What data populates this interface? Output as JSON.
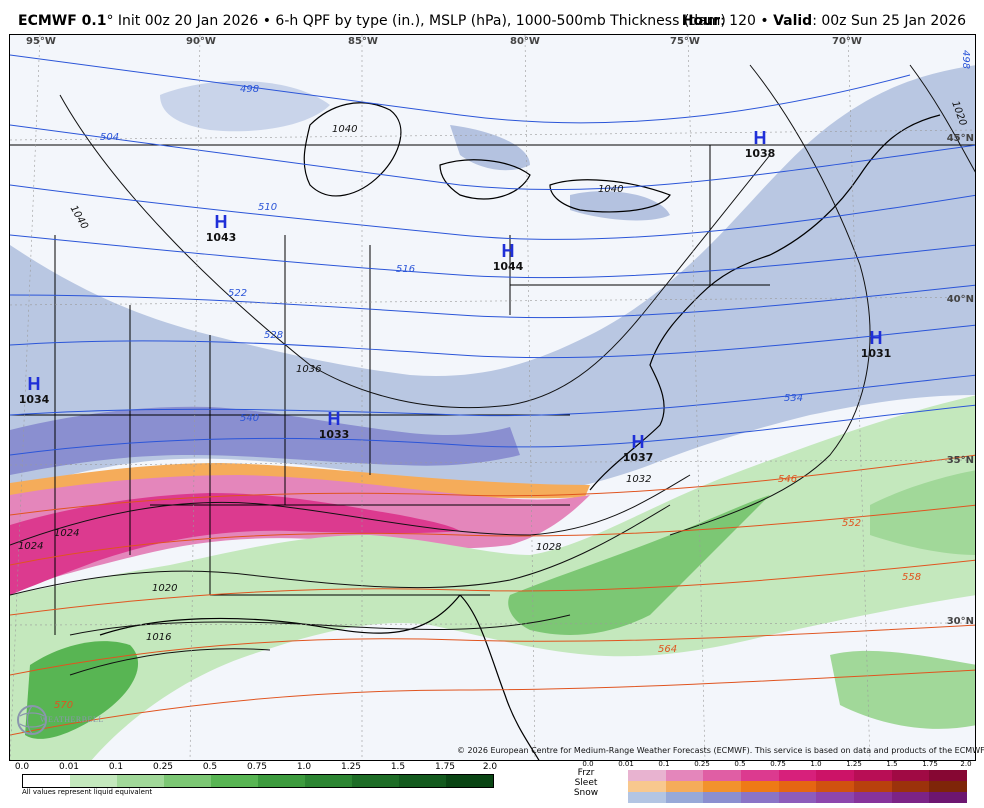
{
  "header": {
    "model": "ECMWF 0.1",
    "description": "° Init 00z 20 Jan 2026 • 6-h QPF by type (in.), MSLP (hPa), 1000-500mb Thickness (dam)",
    "hour_label": "Hour",
    "hour_value": ": 120 •",
    "valid_label": "Valid",
    "valid_value": ": 00z Sun 25 Jan 2026"
  },
  "longitude_labels": [
    "95°W",
    "90°W",
    "85°W",
    "80°W",
    "75°W",
    "70°W"
  ],
  "latitude_labels": [
    "45°N",
    "40°N",
    "35°N",
    "30°N"
  ],
  "pressure_centers": [
    {
      "letter": "H",
      "value": "1043"
    },
    {
      "letter": "H",
      "value": "1044"
    },
    {
      "letter": "H",
      "value": "1038"
    },
    {
      "letter": "H",
      "value": "1034"
    },
    {
      "letter": "H",
      "value": "1033"
    },
    {
      "letter": "H",
      "value": "1037"
    },
    {
      "letter": "H",
      "value": "1031"
    }
  ],
  "isobar_labels": [
    "1040",
    "1040",
    "1040",
    "1036",
    "1032",
    "1028",
    "1024",
    "1024",
    "1020",
    "1016",
    "1020"
  ],
  "thickness_labels": [
    "498",
    "504",
    "510",
    "516",
    "522",
    "528",
    "534",
    "540",
    "546",
    "552",
    "558",
    "564",
    "570",
    "498"
  ],
  "copyright": "© 2026 European Centre for Medium-Range Weather Forecasts (ECMWF). This service is based on data and products of the ECMWF.",
  "logo_text": "WEATHERBELL",
  "legend": {
    "qpf_ticks": [
      "0.0",
      "0.01",
      "0.1",
      "0.25",
      "0.5",
      "0.75",
      "1.0",
      "1.25",
      "1.5",
      "1.75",
      "2.0"
    ],
    "qpf_colors": [
      "#ffffff",
      "#c4e8bd",
      "#a1d899",
      "#7cc774",
      "#58b553",
      "#3d9b3e",
      "#2c8532",
      "#1e6d27",
      "#135a1e",
      "#0a4514"
    ],
    "qpf_note": "All values represent liquid equivalent",
    "type_labels": [
      "Frzr",
      "Sleet",
      "Snow"
    ],
    "type_ticks": [
      "0.0",
      "0.01",
      "0.1",
      "0.25",
      "0.5",
      "0.75",
      "1.0",
      "1.25",
      "1.5",
      "1.75",
      "2.0"
    ],
    "frzr_colors": [
      "#e8b3d0",
      "#e486bb",
      "#e05ea4",
      "#dc3a8f",
      "#d7207b",
      "#cc1367",
      "#b80e55",
      "#a00a44",
      "#860733"
    ],
    "sleet_colors": [
      "#f8c88e",
      "#f5ac5a",
      "#f2922c",
      "#ee7a16",
      "#e56612",
      "#d0520f",
      "#b8410d",
      "#9b320b",
      "#7e2508"
    ],
    "snow_colors": [
      "#b3c5e3",
      "#97a9d8",
      "#8b8fd0",
      "#8a74c7",
      "#8d5cbb",
      "#8d46ad",
      "#87339b",
      "#7c2386",
      "#6d1670"
    ]
  }
}
